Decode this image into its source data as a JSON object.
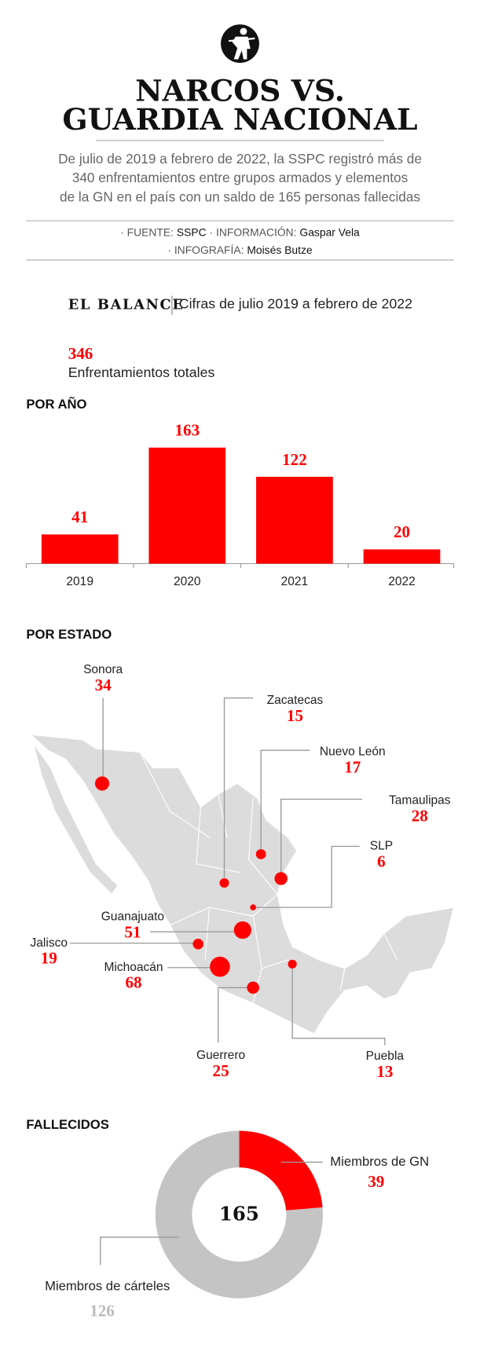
{
  "header": {
    "title": [
      "NARCOS VS.",
      "GUARDIA NACIONAL"
    ],
    "subtitle": [
      "De julio de 2019 a febrero de 2022, la SSPC registró más de",
      "340 enfrentamientos entre grupos armados y elementos",
      "de la GN en el país con un saldo de 165 personas fallecidas"
    ],
    "credits": [
      [
        {
          "label": "· FUENTE:",
          "value": "SSPC"
        },
        {
          "label": "· INFORMACIÓN:",
          "value": "Gaspar Vela"
        }
      ],
      [
        {
          "label": "· INFOGRAFÍA:",
          "value": "Moisés Butze"
        }
      ]
    ]
  },
  "balance": {
    "title": "EL BALANCE",
    "subtitle": "Cifras de julio 2019 a febrero de 2022",
    "total": 346,
    "total_label": "Enfrentamientos totales"
  },
  "chart_data": [
    {
      "type": "bar",
      "title": "POR AÑO",
      "categories": [
        "2019",
        "2020",
        "2021",
        "2022"
      ],
      "values": [
        41,
        163,
        122,
        20
      ],
      "color": "#ff0000"
    },
    {
      "type": "bubble_map",
      "title": "POR ESTADO",
      "categories": [
        "Sonora",
        "Zacatecas",
        "Nuevo León",
        "Tamaulipas",
        "SLP",
        "Guanajuato",
        "Jalisco",
        "Michoacán",
        "Guerrero",
        "Puebla"
      ],
      "values": [
        34,
        15,
        17,
        28,
        6,
        51,
        19,
        68,
        25,
        13
      ],
      "color": "#ff0000"
    },
    {
      "type": "donut",
      "title": "FALLECIDOS",
      "total": 165,
      "categories": [
        "Miembros de GN",
        "Miembros de cárteles"
      ],
      "values": [
        39,
        126
      ],
      "colors": [
        "#ff0000",
        "#c4c4c4"
      ],
      "value_colors": [
        "#ff0000",
        "#bbbbbb"
      ]
    }
  ]
}
